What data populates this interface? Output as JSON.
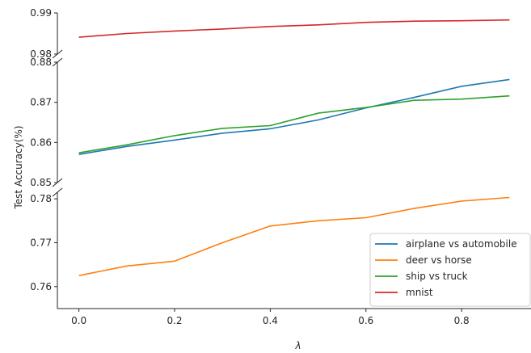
{
  "chart_data": {
    "type": "line",
    "layout": "broken y-axis (three stacked panels sharing the x-axis)",
    "xlabel": "λ",
    "ylabel": "Test Accuracy(%)",
    "x": [
      0.0,
      0.1,
      0.2,
      0.3,
      0.4,
      0.5,
      0.6,
      0.7,
      0.8,
      0.9
    ],
    "x_ticks": [
      0.0,
      0.2,
      0.4,
      0.6,
      0.8
    ],
    "x_tick_labels": [
      "0.0",
      "0.2",
      "0.4",
      "0.6",
      "0.8"
    ],
    "xlim": [
      -0.045,
      0.945
    ],
    "panels": [
      {
        "ylim": [
          0.98,
          0.99
        ],
        "y_ticks": [
          0.98,
          0.99
        ],
        "y_tick_labels": [
          "0.98",
          "0.99"
        ]
      },
      {
        "ylim": [
          0.85,
          0.88
        ],
        "y_ticks": [
          0.85,
          0.86,
          0.87,
          0.88
        ],
        "y_tick_labels": [
          "0.85",
          "0.86",
          "0.87",
          "0.88"
        ]
      },
      {
        "ylim": [
          0.755,
          0.7815
        ],
        "y_ticks": [
          0.76,
          0.77,
          0.78
        ],
        "y_tick_labels": [
          "0.76",
          "0.77",
          "0.78"
        ]
      }
    ],
    "series": [
      {
        "name": "airplane vs automobile",
        "color": "#1f77b4",
        "panel": 1,
        "values": [
          0.857,
          0.859,
          0.8606,
          0.8623,
          0.8634,
          0.8656,
          0.8686,
          0.8712,
          0.874,
          0.8757
        ]
      },
      {
        "name": "deer vs horse",
        "color": "#ff7f0e",
        "panel": 2,
        "values": [
          0.7625,
          0.7647,
          0.7658,
          0.77,
          0.7738,
          0.775,
          0.7757,
          0.7778,
          0.7795,
          0.7803
        ]
      },
      {
        "name": "ship vs truck",
        "color": "#2ca02c",
        "panel": 1,
        "values": [
          0.8574,
          0.8594,
          0.8617,
          0.8635,
          0.8642,
          0.8673,
          0.8687,
          0.8705,
          0.8708,
          0.8716
        ]
      },
      {
        "name": "mnist",
        "color": "#d62728",
        "panel": 0,
        "values": [
          0.9841,
          0.985,
          0.9856,
          0.9861,
          0.9867,
          0.9871,
          0.9877,
          0.988,
          0.9881,
          0.9883
        ]
      }
    ],
    "legend_position": "bottom-right",
    "grid": false
  }
}
